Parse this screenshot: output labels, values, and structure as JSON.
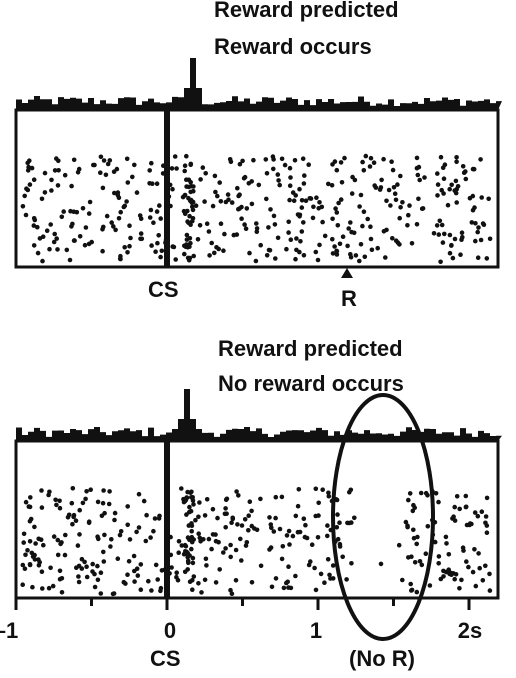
{
  "top_panel": {
    "title_line1": "Reward predicted",
    "title_line2": "Reward occurs",
    "cs_label": "CS",
    "r_label": "R"
  },
  "bottom_panel": {
    "title_line1": "Reward predicted",
    "title_line2": "No reward occurs",
    "cs_label": "CS",
    "no_r_label": "(No R)"
  },
  "x_axis": {
    "tick_labels": [
      "–1",
      "0",
      "1",
      "2s"
    ],
    "ticks": [
      -1,
      -0.5,
      0,
      0.5,
      1,
      1.5,
      2
    ]
  },
  "colors": {
    "ink": "#111111",
    "background": "#ffffff"
  }
}
